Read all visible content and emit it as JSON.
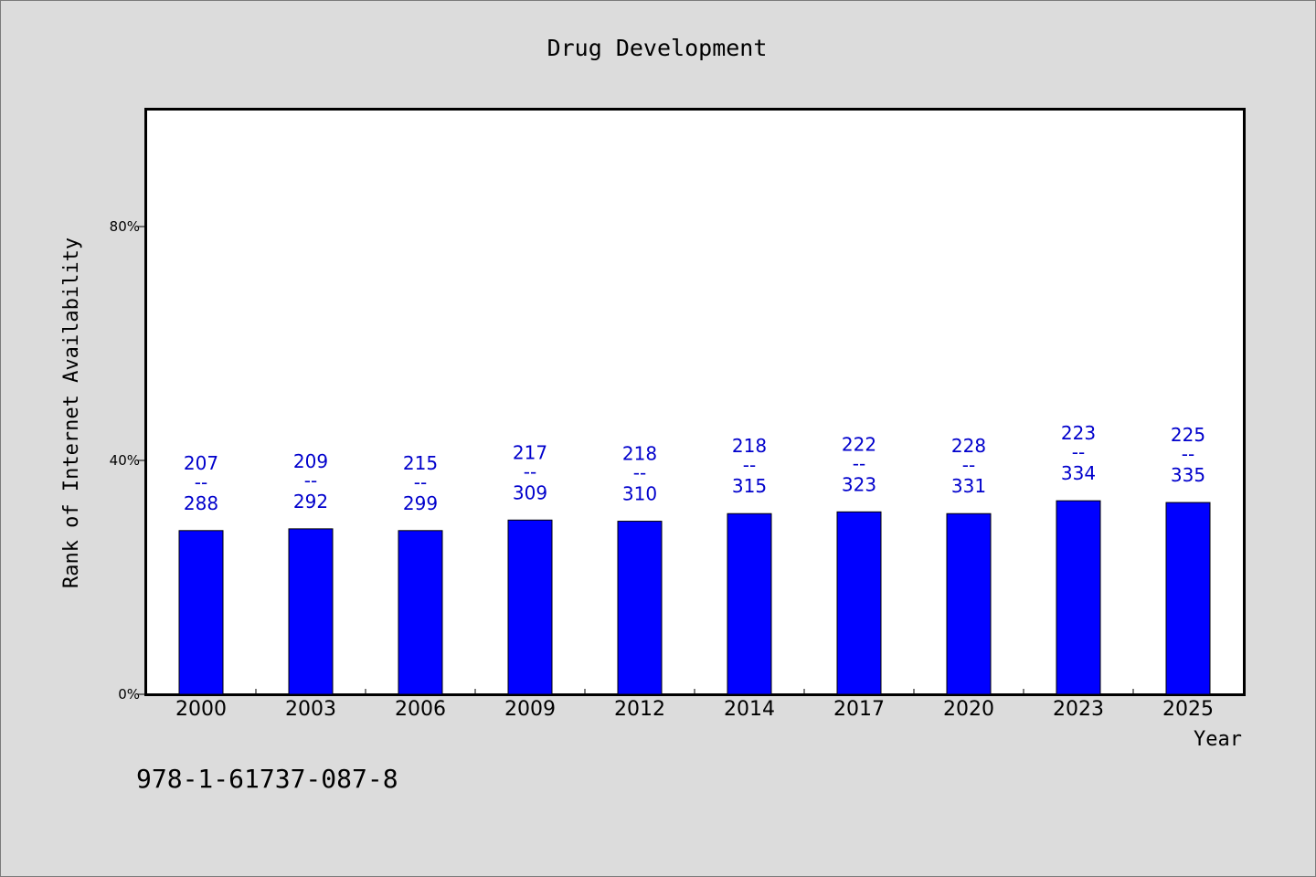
{
  "chart_data": {
    "type": "bar",
    "title": "Drug Development",
    "xlabel": "Year",
    "ylabel": "Rank of Internet Availability",
    "ylim": [
      0,
      100
    ],
    "yticks": [
      {
        "value": 0,
        "label": "0%"
      },
      {
        "value": 40,
        "label": "40%"
      },
      {
        "value": 80,
        "label": "80%"
      }
    ],
    "categories": [
      "2000",
      "2003",
      "2006",
      "2009",
      "2012",
      "2014",
      "2017",
      "2020",
      "2023",
      "2025"
    ],
    "values": [
      28,
      28.3,
      28,
      29.8,
      29.6,
      30.9,
      31.2,
      30.9,
      33.1,
      32.8
    ],
    "bar_labels": [
      {
        "top": "207",
        "sep": "--",
        "bottom": "288"
      },
      {
        "top": "209",
        "sep": "--",
        "bottom": "292"
      },
      {
        "top": "215",
        "sep": "--",
        "bottom": "299"
      },
      {
        "top": "217",
        "sep": "--",
        "bottom": "309"
      },
      {
        "top": "218",
        "sep": "--",
        "bottom": "310"
      },
      {
        "top": "218",
        "sep": "--",
        "bottom": "315"
      },
      {
        "top": "222",
        "sep": "--",
        "bottom": "323"
      },
      {
        "top": "228",
        "sep": "--",
        "bottom": "331"
      },
      {
        "top": "223",
        "sep": "--",
        "bottom": "334"
      },
      {
        "top": "225",
        "sep": "--",
        "bottom": "335"
      }
    ],
    "bar_color": "#0000ff",
    "label_color": "#0000cc",
    "plot_background": "#ffffff",
    "background": "#dcdcdc",
    "grid": false,
    "legend": "none"
  },
  "footnote": "978-1-61737-087-8"
}
